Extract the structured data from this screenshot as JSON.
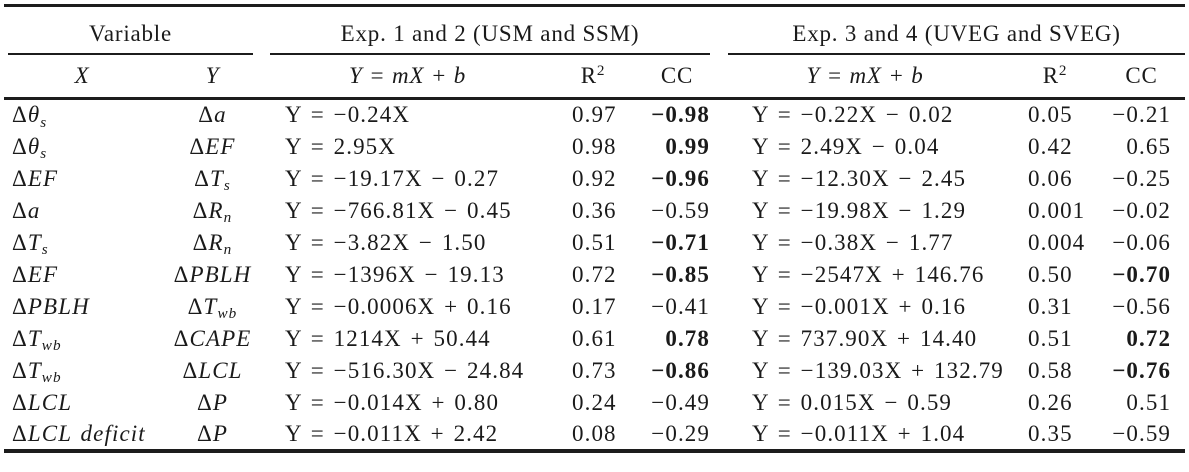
{
  "table": {
    "groups": [
      {
        "label": "Variable"
      },
      {
        "label": "Exp. 1 and 2 (USM and SSM)"
      },
      {
        "label": "Exp. 3 and 4 (UVEG and SVEG)"
      }
    ],
    "columns": {
      "x_label": "X",
      "y_label": "Y",
      "eq_label": "Y = mX + b",
      "r2_base": "R",
      "r2_sup": "2",
      "cc_label": "CC"
    },
    "rows": [
      {
        "x": {
          "pre": "Δ",
          "main": "θ",
          "sub": "s"
        },
        "y": {
          "pre": "Δ",
          "main": "a",
          "sub": ""
        },
        "exp12": {
          "eq": "Y = −0.24X",
          "r2": "0.97",
          "cc": "−0.98",
          "cc_bold": true
        },
        "exp34": {
          "eq": "Y = −0.22X − 0.02",
          "r2": "0.05",
          "cc": "−0.21",
          "cc_bold": false
        }
      },
      {
        "x": {
          "pre": "Δ",
          "main": "θ",
          "sub": "s"
        },
        "y": {
          "pre": "Δ",
          "main": "EF",
          "sub": ""
        },
        "exp12": {
          "eq": "Y = 2.95X",
          "r2": "0.98",
          "cc": "0.99",
          "cc_bold": true
        },
        "exp34": {
          "eq": "Y = 2.49X − 0.04",
          "r2": "0.42",
          "cc": "0.65",
          "cc_bold": false
        }
      },
      {
        "x": {
          "pre": "Δ",
          "main": "EF",
          "sub": ""
        },
        "y": {
          "pre": "Δ",
          "main": "T",
          "sub": "s"
        },
        "exp12": {
          "eq": "Y = −19.17X − 0.27",
          "r2": "0.92",
          "cc": "−0.96",
          "cc_bold": true
        },
        "exp34": {
          "eq": "Y = −12.30X − 2.45",
          "r2": "0.06",
          "cc": "−0.25",
          "cc_bold": false
        }
      },
      {
        "x": {
          "pre": "Δ",
          "main": "a",
          "sub": ""
        },
        "y": {
          "pre": "Δ",
          "main": "R",
          "sub": "n"
        },
        "exp12": {
          "eq": "Y = −766.81X − 0.45",
          "r2": "0.36",
          "cc": "−0.59",
          "cc_bold": false
        },
        "exp34": {
          "eq": "Y = −19.98X − 1.29",
          "r2": "0.001",
          "cc": "−0.02",
          "cc_bold": false
        }
      },
      {
        "x": {
          "pre": "Δ",
          "main": "T",
          "sub": "s"
        },
        "y": {
          "pre": "Δ",
          "main": "R",
          "sub": "n"
        },
        "exp12": {
          "eq": "Y = −3.82X − 1.50",
          "r2": "0.51",
          "cc": "−0.71",
          "cc_bold": true
        },
        "exp34": {
          "eq": "Y = −0.38X − 1.77",
          "r2": "0.004",
          "cc": "−0.06",
          "cc_bold": false
        }
      },
      {
        "x": {
          "pre": "Δ",
          "main": "EF",
          "sub": ""
        },
        "y": {
          "pre": "Δ",
          "main": "PBLH",
          "sub": ""
        },
        "exp12": {
          "eq": "Y = −1396X − 19.13",
          "r2": "0.72",
          "cc": "−0.85",
          "cc_bold": true
        },
        "exp34": {
          "eq": "Y = −2547X + 146.76",
          "r2": "0.50",
          "cc": "−0.70",
          "cc_bold": true
        }
      },
      {
        "x": {
          "pre": "Δ",
          "main": "PBLH",
          "sub": ""
        },
        "y": {
          "pre": "Δ",
          "main": "T",
          "sub": "wb"
        },
        "exp12": {
          "eq": "Y = −0.0006X + 0.16",
          "r2": "0.17",
          "cc": "−0.41",
          "cc_bold": false
        },
        "exp34": {
          "eq": "Y = −0.001X + 0.16",
          "r2": "0.31",
          "cc": "−0.56",
          "cc_bold": false
        }
      },
      {
        "x": {
          "pre": "Δ",
          "main": "T",
          "sub": "wb"
        },
        "y": {
          "pre": "Δ",
          "main": "CAPE",
          "sub": ""
        },
        "exp12": {
          "eq": "Y = 1214X + 50.44",
          "r2": "0.61",
          "cc": "0.78",
          "cc_bold": true
        },
        "exp34": {
          "eq": "Y = 737.90X + 14.40",
          "r2": "0.51",
          "cc": "0.72",
          "cc_bold": true
        }
      },
      {
        "x": {
          "pre": "Δ",
          "main": "T",
          "sub": "wb"
        },
        "y": {
          "pre": "Δ",
          "main": "LCL",
          "sub": ""
        },
        "exp12": {
          "eq": "Y = −516.30X − 24.84",
          "r2": "0.73",
          "cc": "−0.86",
          "cc_bold": true
        },
        "exp34": {
          "eq": "Y = −139.03X + 132.79",
          "r2": "0.58",
          "cc": "−0.76",
          "cc_bold": true
        }
      },
      {
        "x": {
          "pre": "Δ",
          "main": "LCL",
          "sub": ""
        },
        "y": {
          "pre": "Δ",
          "main": "P",
          "sub": ""
        },
        "exp12": {
          "eq": "Y = −0.014X + 0.80",
          "r2": "0.24",
          "cc": "−0.49",
          "cc_bold": false
        },
        "exp34": {
          "eq": "Y = 0.015X − 0.59",
          "r2": "0.26",
          "cc": "0.51",
          "cc_bold": false
        }
      },
      {
        "x": {
          "pre": "Δ",
          "main": "LCL deficit",
          "sub": ""
        },
        "y": {
          "pre": "Δ",
          "main": "P",
          "sub": ""
        },
        "exp12": {
          "eq": "Y = −0.011X + 2.42",
          "r2": "0.08",
          "cc": "−0.29",
          "cc_bold": false
        },
        "exp34": {
          "eq": "Y = −0.011X + 1.04",
          "r2": "0.35",
          "cc": "−0.59",
          "cc_bold": false
        }
      }
    ]
  },
  "chart_data": {
    "type": "table",
    "column_groups": [
      "Variable",
      "Exp. 1 and 2 (USM and SSM)",
      "Exp. 3 and 4 (UVEG and SVEG)"
    ],
    "columns": [
      "X",
      "Y",
      "Y = mX + b",
      "R2",
      "CC",
      "Y = mX + b",
      "R2",
      "CC"
    ],
    "rows": [
      [
        "Δθs",
        "Δa",
        "Y = −0.24X",
        "0.97",
        "−0.98",
        "Y = −0.22X − 0.02",
        "0.05",
        "−0.21"
      ],
      [
        "Δθs",
        "ΔEF",
        "Y = 2.95X",
        "0.98",
        "0.99",
        "Y = 2.49X − 0.04",
        "0.42",
        "0.65"
      ],
      [
        "ΔEF",
        "ΔTs",
        "Y = −19.17X − 0.27",
        "0.92",
        "−0.96",
        "Y = −12.30X − 2.45",
        "0.06",
        "−0.25"
      ],
      [
        "Δa",
        "ΔRn",
        "Y = −766.81X − 0.45",
        "0.36",
        "−0.59",
        "Y = −19.98X − 1.29",
        "0.001",
        "−0.02"
      ],
      [
        "ΔTs",
        "ΔRn",
        "Y = −3.82X − 1.50",
        "0.51",
        "−0.71",
        "Y = −0.38X − 1.77",
        "0.004",
        "−0.06"
      ],
      [
        "ΔEF",
        "ΔPBLH",
        "Y = −1396X − 19.13",
        "0.72",
        "−0.85",
        "Y = −2547X + 146.76",
        "0.50",
        "−0.70"
      ],
      [
        "ΔPBLH",
        "ΔTwb",
        "Y = −0.0006X + 0.16",
        "0.17",
        "−0.41",
        "Y = −0.001X + 0.16",
        "0.31",
        "−0.56"
      ],
      [
        "ΔTwb",
        "ΔCAPE",
        "Y = 1214X + 50.44",
        "0.61",
        "0.78",
        "Y = 737.90X + 14.40",
        "0.51",
        "0.72"
      ],
      [
        "ΔTwb",
        "ΔLCL",
        "Y = −516.30X − 24.84",
        "0.73",
        "−0.86",
        "Y = −139.03X + 132.79",
        "0.58",
        "−0.76"
      ],
      [
        "ΔLCL",
        "ΔP",
        "Y = −0.014X + 0.80",
        "0.24",
        "−0.49",
        "Y = 0.015X − 0.59",
        "0.26",
        "0.51"
      ],
      [
        "ΔLCL deficit",
        "ΔP",
        "Y = −0.011X + 2.42",
        "0.08",
        "−0.29",
        "Y = −0.011X + 1.04",
        "0.35",
        "−0.59"
      ]
    ],
    "bold_cc_exp12": [
      true,
      true,
      true,
      false,
      true,
      true,
      false,
      true,
      true,
      false,
      false
    ],
    "bold_cc_exp34": [
      false,
      false,
      false,
      false,
      false,
      true,
      false,
      true,
      true,
      false,
      false
    ]
  }
}
